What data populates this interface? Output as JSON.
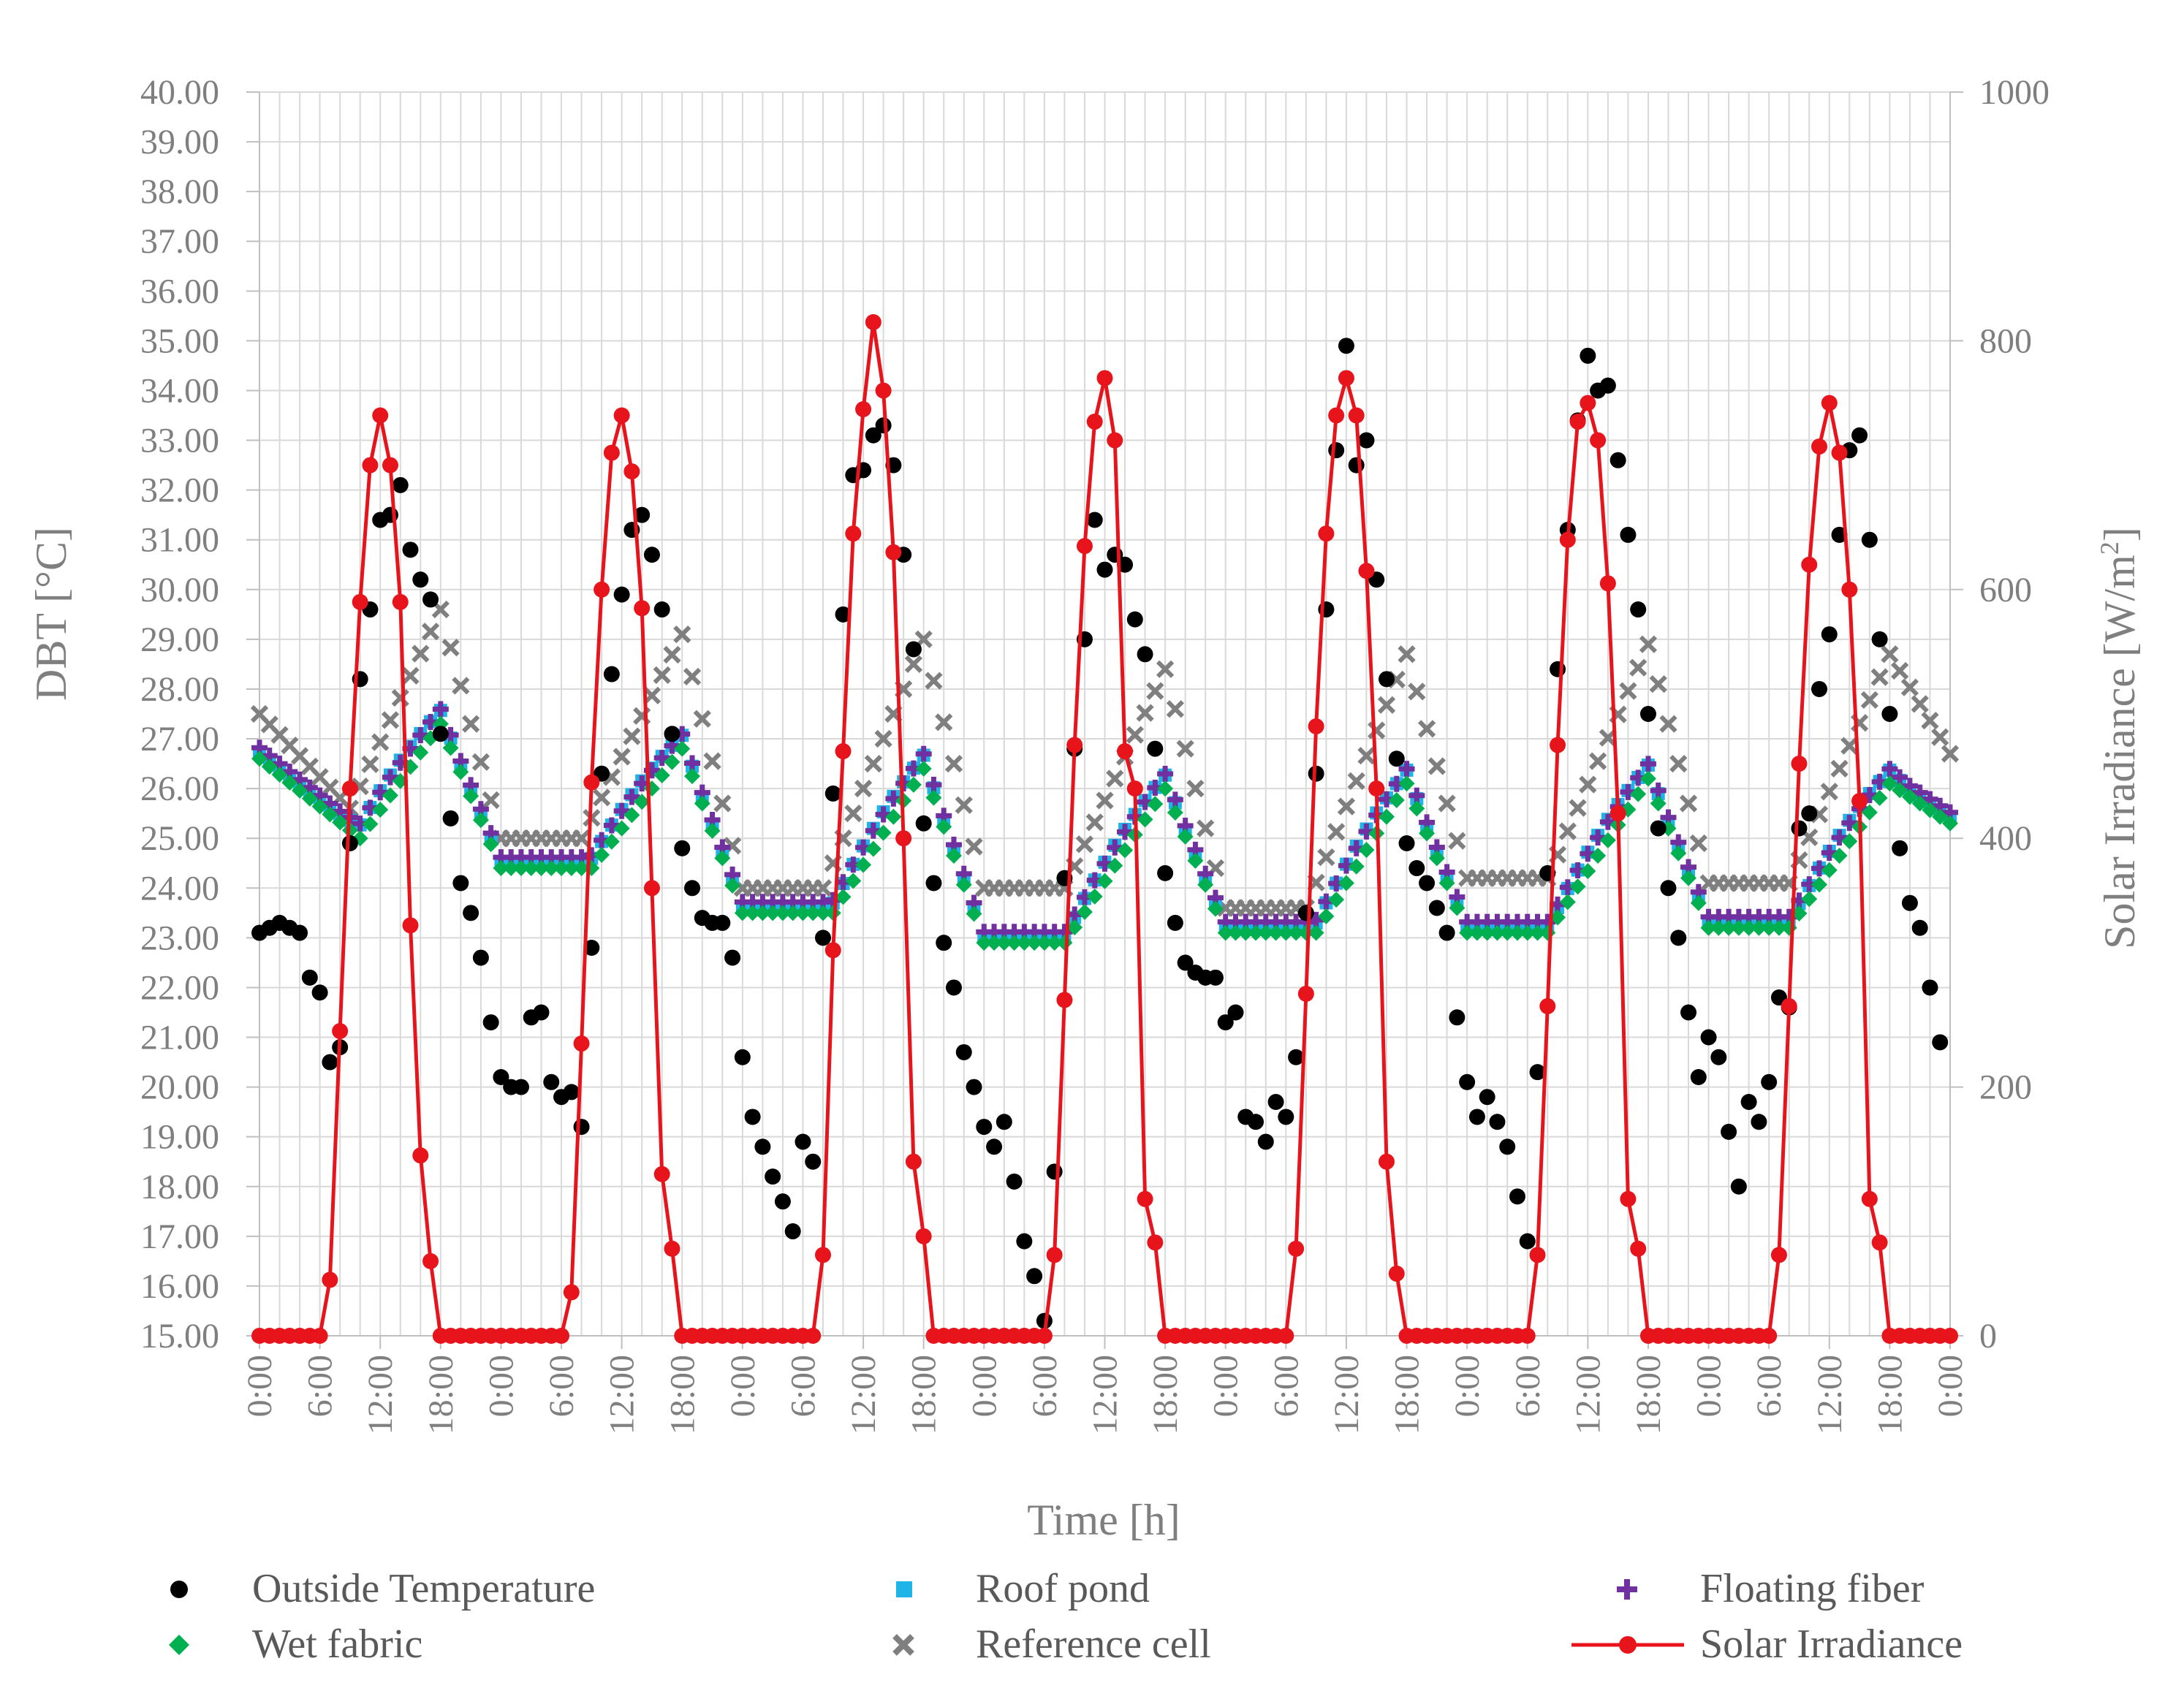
{
  "chart_data": {
    "type": "scatter",
    "x_unit": "hour",
    "x_range_hours": [
      0,
      168
    ],
    "x_step_hours": 1,
    "xlabel": "Time [h]",
    "ylabel_left": "DBT [°C]",
    "ylabel_right_main": "Solar Irradiance  [W/m",
    "ylabel_right_sup": "2",
    "ylabel_right_close": "]",
    "ylim_left": [
      15,
      40
    ],
    "ylim_right": [
      0,
      1000
    ],
    "y_ticks_left": [
      "15.00",
      "16.00",
      "17.00",
      "18.00",
      "19.00",
      "20.00",
      "21.00",
      "22.00",
      "23.00",
      "24.00",
      "25.00",
      "26.00",
      "27.00",
      "28.00",
      "29.00",
      "30.00",
      "31.00",
      "32.00",
      "33.00",
      "34.00",
      "35.00",
      "36.00",
      "37.00",
      "38.00",
      "39.00",
      "40.00"
    ],
    "y_ticks_right": [
      "0",
      "200",
      "400",
      "600",
      "800",
      "1000"
    ],
    "x_ticks": [
      "0:00",
      "6:00",
      "12:00",
      "18:00",
      "0:00",
      "6:00",
      "12:00",
      "18:00",
      "0:00",
      "6:00",
      "12:00",
      "18:00",
      "0:00",
      "6:00",
      "12:00",
      "18:00",
      "0:00",
      "6:00",
      "12:00",
      "18:00",
      "0:00",
      "6:00",
      "12:00",
      "18:00",
      "0:00",
      "6:00",
      "12:00",
      "18:00",
      "0:00"
    ],
    "grid": true,
    "legend_position": "bottom",
    "colors": {
      "outside": "#000000",
      "roof_pond": "#1fb4e8",
      "floating_fiber": "#7030a0",
      "wet_fabric": "#00b050",
      "reference": "#7f7f7f",
      "solar": "#e8141c",
      "grid": "#d9d9d9",
      "axis": "#bfbfbf"
    },
    "series": [
      {
        "name": "Outside Temperature",
        "axis": "left",
        "marker": "circle",
        "color_key": "outside",
        "values": [
          23.1,
          23.2,
          23.3,
          23.2,
          23.1,
          22.2,
          21.9,
          20.5,
          20.8,
          24.9,
          28.2,
          29.6,
          31.4,
          31.5,
          32.1,
          30.8,
          30.2,
          29.8,
          27.1,
          25.4,
          24.1,
          23.5,
          22.6,
          21.3,
          20.2,
          20,
          20,
          21.4,
          21.5,
          20.1,
          19.8,
          19.9,
          19.2,
          22.8,
          26.3,
          28.3,
          29.9,
          31.2,
          31.5,
          30.7,
          29.6,
          27.1,
          24.8,
          24,
          23.4,
          23.3,
          23.3,
          22.6,
          20.6,
          19.4,
          18.8,
          18.2,
          17.7,
          17.1,
          18.9,
          18.5,
          23,
          25.9,
          29.5,
          32.3,
          32.4,
          33.1,
          33.3,
          32.5,
          30.7,
          28.8,
          25.3,
          24.1,
          22.9,
          22,
          20.7,
          20,
          19.2,
          18.8,
          19.3,
          18.1,
          16.9,
          16.2,
          15.3,
          18.3,
          24.2,
          26.8,
          29,
          31.4,
          30.4,
          30.7,
          30.5,
          29.4,
          28.7,
          26.8,
          24.3,
          23.3,
          22.5,
          22.3,
          22.2,
          22.2,
          21.3,
          21.5,
          19.4,
          19.3,
          18.9,
          19.7,
          19.4,
          20.6,
          23.5,
          26.3,
          29.6,
          32.8,
          34.9,
          32.5,
          33,
          30.2,
          28.2,
          26.6,
          24.9,
          24.4,
          24.1,
          23.6,
          23.1,
          21.4,
          20.1,
          19.4,
          19.8,
          19.3,
          18.8,
          17.8,
          16.9,
          20.3,
          24.3,
          28.4,
          31.2,
          33.4,
          34.7,
          34,
          34.1,
          32.6,
          31.1,
          29.6,
          27.5,
          25.2,
          24,
          23,
          21.5,
          20.2,
          21,
          20.6,
          19.1,
          18,
          19.7,
          19.3,
          20.1,
          21.8,
          21.6,
          25.2,
          25.5,
          28,
          29.1,
          31.1,
          32.8,
          33.1,
          31,
          29,
          27.5,
          24.8,
          23.7,
          23.2,
          22,
          20.9
        ]
      },
      {
        "name": "Roof pond",
        "axis": "left",
        "marker": "square",
        "color_key": "roof_pond",
        "peak_offset": 0.3
      },
      {
        "name": "Floating fiber",
        "axis": "left",
        "marker": "plus",
        "color_key": "floating_fiber",
        "peak_offset": 0.15
      },
      {
        "name": "Wet fabric",
        "axis": "left",
        "marker": "diamond",
        "color_key": "wet_fabric",
        "days": [
          {
            "start": 26.6,
            "min": 25.0,
            "max": 27.3,
            "min_hour": 10,
            "max_hour": 18
          },
          {
            "start": 24.4,
            "min": 24.4,
            "max": 26.8,
            "min_hour": 9,
            "max_hour": 18
          },
          {
            "start": 23.5,
            "min": 23.5,
            "max": 26.4,
            "min_hour": 9,
            "max_hour": 18
          },
          {
            "start": 22.9,
            "min": 22.9,
            "max": 26.0,
            "min_hour": 8,
            "max_hour": 18
          },
          {
            "start": 23.1,
            "min": 23.1,
            "max": 26.1,
            "min_hour": 9,
            "max_hour": 18
          },
          {
            "start": 23.1,
            "min": 23.1,
            "max": 26.2,
            "min_hour": 8,
            "max_hour": 18
          },
          {
            "start": 23.2,
            "min": 23.2,
            "max": 26.1,
            "min_hour": 8,
            "max_hour": 18,
            "end": 25.3
          }
        ]
      },
      {
        "name": "Reference cell",
        "axis": "left",
        "marker": "x",
        "color_key": "reference",
        "days": [
          {
            "start": 27.5,
            "min": 25.6,
            "max": 29.6,
            "min_hour": 9,
            "max_hour": 18
          },
          {
            "start": 25.0,
            "min": 25.0,
            "max": 29.1,
            "min_hour": 8,
            "max_hour": 18
          },
          {
            "start": 24.0,
            "min": 24.0,
            "max": 29.0,
            "min_hour": 8,
            "max_hour": 18
          },
          {
            "start": 24.0,
            "min": 24.0,
            "max": 28.4,
            "min_hour": 8,
            "max_hour": 18
          },
          {
            "start": 23.6,
            "min": 23.6,
            "max": 28.7,
            "min_hour": 8,
            "max_hour": 18
          },
          {
            "start": 24.2,
            "min": 24.2,
            "max": 28.9,
            "min_hour": 8,
            "max_hour": 18
          },
          {
            "start": 24.1,
            "min": 24.1,
            "max": 28.7,
            "min_hour": 8,
            "max_hour": 18,
            "end": 26.7
          }
        ]
      },
      {
        "name": "Solar Irradiance",
        "axis": "right",
        "marker": "circle-line",
        "color_key": "solar",
        "daily_profile_hours": [
          6,
          7,
          8,
          9,
          10,
          11,
          12,
          13,
          14,
          15,
          16,
          17,
          18
        ],
        "days": [
          [
            0,
            45,
            245,
            440,
            590,
            700,
            740,
            700,
            590,
            330,
            145,
            60,
            0
          ],
          [
            0,
            35,
            235,
            445,
            600,
            710,
            740,
            695,
            585,
            360,
            130,
            70,
            0
          ],
          [
            0,
            0,
            65,
            310,
            470,
            645,
            745,
            815,
            760,
            630,
            400,
            140,
            80
          ],
          [
            0,
            65,
            270,
            475,
            635,
            735,
            770,
            720,
            470,
            440,
            110,
            75,
            0
          ],
          [
            0,
            70,
            275,
            490,
            645,
            740,
            770,
            740,
            615,
            440,
            140,
            50,
            0
          ],
          [
            0,
            65,
            265,
            475,
            640,
            735,
            750,
            720,
            605,
            420,
            110,
            70,
            0
          ],
          [
            0,
            65,
            265,
            460,
            620,
            715,
            750,
            710,
            600,
            430,
            110,
            75,
            0
          ]
        ]
      }
    ]
  }
}
